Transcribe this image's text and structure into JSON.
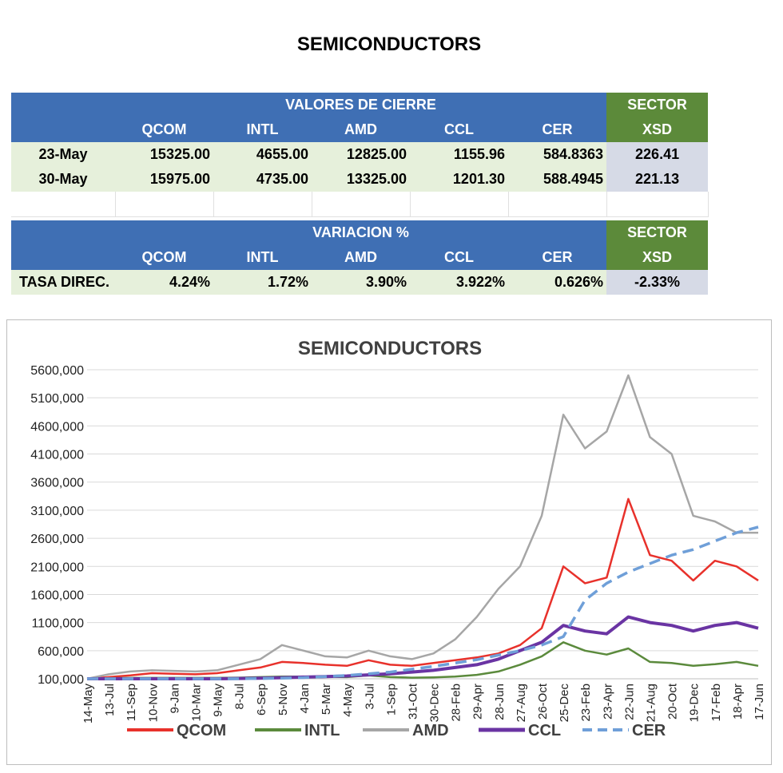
{
  "page_title": "SEMICONDUCTORS",
  "table1": {
    "group_header": "VALORES DE CIERRE",
    "sector_header": "SECTOR",
    "sector_sub": "XSD",
    "columns": [
      "QCOM",
      "INTL",
      "AMD",
      "CCL",
      "CER"
    ],
    "rows": [
      {
        "label": "23-May",
        "values": [
          "15325.00",
          "4655.00",
          "12825.00",
          "1155.96",
          "584.8363"
        ],
        "sector": "226.41"
      },
      {
        "label": "30-May",
        "values": [
          "15975.00",
          "4735.00",
          "13325.00",
          "1201.30",
          "588.4945"
        ],
        "sector": "221.13"
      }
    ]
  },
  "table2": {
    "group_header": "VARIACION %",
    "sector_header": "SECTOR",
    "sector_sub": "XSD",
    "columns": [
      "QCOM",
      "INTL",
      "AMD",
      "CCL",
      "CER"
    ],
    "row": {
      "label": "TASA DIREC.",
      "values": [
        "4.24%",
        "1.72%",
        "3.90%",
        "3.922%",
        "0.626%"
      ],
      "sector": "-2.33%"
    }
  },
  "chart_data": {
    "type": "line",
    "title": "SEMICONDUCTORS",
    "xlabel": "",
    "ylabel": "",
    "ylim": [
      100000,
      5600000
    ],
    "yticks": [
      "5600,000",
      "5100,000",
      "4600,000",
      "4100,000",
      "3600,000",
      "3100,000",
      "2600,000",
      "2100,000",
      "1600,000",
      "1100,000",
      "600,000",
      "100,000"
    ],
    "xticks": [
      "14-May",
      "13-Jul",
      "11-Sep",
      "10-Nov",
      "9-Jan",
      "10-Mar",
      "9-May",
      "8-Jul",
      "6-Sep",
      "5-Nov",
      "4-Jan",
      "5-Mar",
      "4-May",
      "3-Jul",
      "1-Sep",
      "31-Oct",
      "30-Dec",
      "28-Feb",
      "29-Apr",
      "28-Jun",
      "27-Aug",
      "26-Oct",
      "25-Dec",
      "23-Feb",
      "23-Apr",
      "22-Jun",
      "21-Aug",
      "20-Oct",
      "19-Dec",
      "17-Feb",
      "18-Apr",
      "17-Jun"
    ],
    "legend_position": "bottom",
    "grid": true,
    "series": [
      {
        "name": "QCOM",
        "color": "#e8312b",
        "style": "solid",
        "values": [
          100000,
          130000,
          160000,
          200000,
          190000,
          180000,
          200000,
          250000,
          300000,
          400000,
          380000,
          350000,
          330000,
          430000,
          350000,
          330000,
          380000,
          430000,
          480000,
          550000,
          700000,
          1000000,
          2100000,
          1800000,
          1900000,
          3300000,
          2300000,
          2200000,
          1850000,
          2200000,
          2100000,
          1850000
        ]
      },
      {
        "name": "INTL",
        "color": "#5b8a3c",
        "style": "solid",
        "values": [
          100000,
          110000,
          115000,
          115000,
          115000,
          115000,
          115000,
          120000,
          130000,
          140000,
          140000,
          135000,
          130000,
          160000,
          130000,
          120000,
          125000,
          140000,
          170000,
          230000,
          350000,
          500000,
          750000,
          600000,
          530000,
          640000,
          400000,
          380000,
          330000,
          360000,
          400000,
          330000
        ]
      },
      {
        "name": "AMD",
        "color": "#a6a6a6",
        "style": "solid",
        "values": [
          100000,
          180000,
          230000,
          250000,
          240000,
          230000,
          250000,
          350000,
          450000,
          700000,
          600000,
          500000,
          480000,
          600000,
          500000,
          450000,
          550000,
          800000,
          1200000,
          1700000,
          2100000,
          3000000,
          4800000,
          4200000,
          4500000,
          5500000,
          4400000,
          4100000,
          3000000,
          2900000,
          2700000,
          2700000
        ]
      },
      {
        "name": "CCL",
        "color": "#6a34a3",
        "style": "solid",
        "values": [
          100000,
          100000,
          100000,
          100000,
          100000,
          100000,
          100000,
          105000,
          110000,
          120000,
          130000,
          140000,
          150000,
          170000,
          190000,
          220000,
          250000,
          300000,
          350000,
          450000,
          600000,
          750000,
          1050000,
          950000,
          900000,
          1200000,
          1100000,
          1050000,
          950000,
          1050000,
          1100000,
          1000000
        ]
      },
      {
        "name": "CER",
        "color": "#6f9fd8",
        "style": "dashed",
        "values": [
          100000,
          100000,
          100000,
          100000,
          100000,
          100000,
          100000,
          100000,
          105000,
          110000,
          120000,
          140000,
          160000,
          190000,
          220000,
          270000,
          320000,
          380000,
          440000,
          520000,
          600000,
          700000,
          850000,
          1500000,
          1800000,
          2000000,
          2150000,
          2300000,
          2400000,
          2550000,
          2700000,
          2800000
        ]
      }
    ]
  }
}
